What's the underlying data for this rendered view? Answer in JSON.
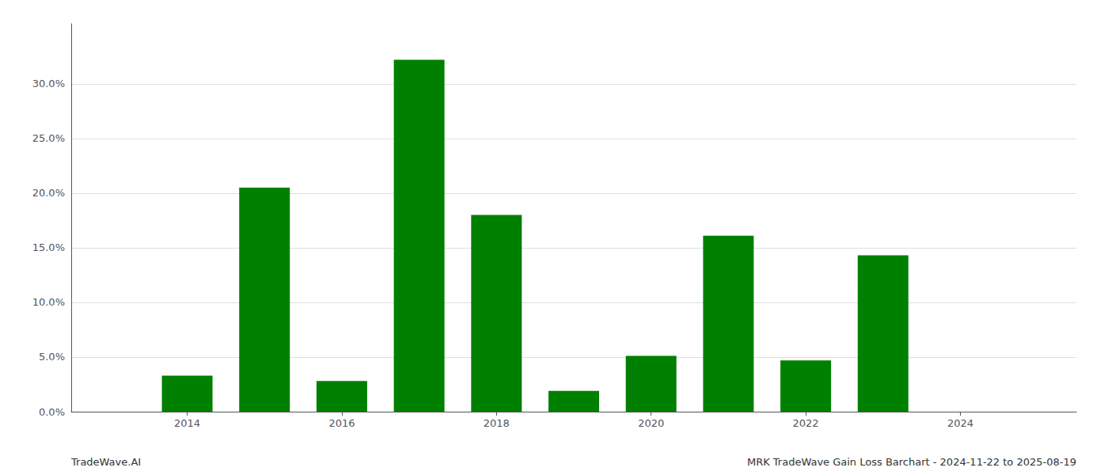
{
  "chart_data": {
    "type": "bar",
    "x": [
      2013,
      2014,
      2015,
      2016,
      2017,
      2018,
      2019,
      2020,
      2021,
      2022,
      2023,
      2024
    ],
    "values": [
      0.0,
      0.033,
      0.205,
      0.028,
      0.322,
      0.18,
      0.019,
      0.051,
      0.161,
      0.047,
      0.143,
      0.0
    ],
    "color": "#008000",
    "xlim": [
      2012.5,
      2025.5
    ],
    "xticks": [
      2014,
      2016,
      2018,
      2020,
      2022,
      2024
    ],
    "ylim": [
      0,
      0.355
    ],
    "yticks": [
      {
        "value": 0.0,
        "label": "0.0%"
      },
      {
        "value": 0.05,
        "label": "5.0%"
      },
      {
        "value": 0.1,
        "label": "10.0%"
      },
      {
        "value": 0.15,
        "label": "15.0%"
      },
      {
        "value": 0.2,
        "label": "20.0%"
      },
      {
        "value": 0.25,
        "label": "25.0%"
      },
      {
        "value": 0.3,
        "label": "30.0%"
      }
    ],
    "grid": true,
    "annotations": [
      "TradeWave.AI",
      "MRK TradeWave Gain Loss Barchart - 2024-11-22 to 2025-08-19"
    ]
  }
}
